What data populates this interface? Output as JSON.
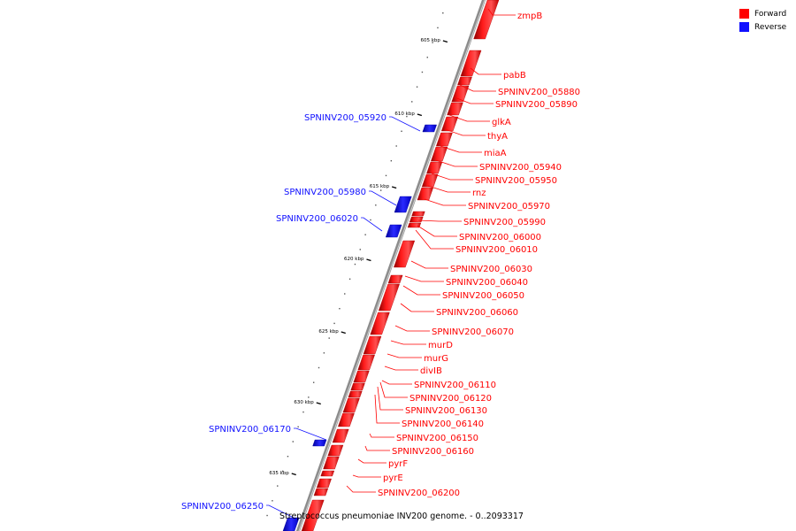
{
  "legend": {
    "forward_label": "Forward",
    "reverse_label": "Reverse",
    "forward_color": "#ff0000",
    "reverse_color": "#1010ff"
  },
  "caption": "Streptococcus pneumoniae INV200 genome. - 0..2093317",
  "ticks": [
    "605 kbp",
    "610 kbp",
    "615 kbp",
    "620 kbp",
    "625 kbp",
    "630 kbp",
    "635 kbp"
  ],
  "genes": {
    "forward": [
      "zmpB",
      "pabB",
      "SPNINV200_05880",
      "SPNINV200_05890",
      "glkA",
      "thyA",
      "miaA",
      "SPNINV200_05940",
      "SPNINV200_05950",
      "rnz",
      "SPNINV200_05970",
      "SPNINV200_05990",
      "SPNINV200_06000",
      "SPNINV200_06010",
      "SPNINV200_06030",
      "SPNINV200_06040",
      "SPNINV200_06050",
      "SPNINV200_06060",
      "SPNINV200_06070",
      "murD",
      "murG",
      "divIB",
      "SPNINV200_06110",
      "SPNINV200_06120",
      "SPNINV200_06130",
      "SPNINV200_06140",
      "SPNINV200_06150",
      "SPNINV200_06160",
      "pyrF",
      "pyrE",
      "SPNINV200_06200"
    ],
    "reverse": [
      "SPNINV200_05920",
      "SPNINV200_05980",
      "SPNINV200_06020",
      "SPNINV200_06170",
      "SPNINV200_06250"
    ]
  }
}
